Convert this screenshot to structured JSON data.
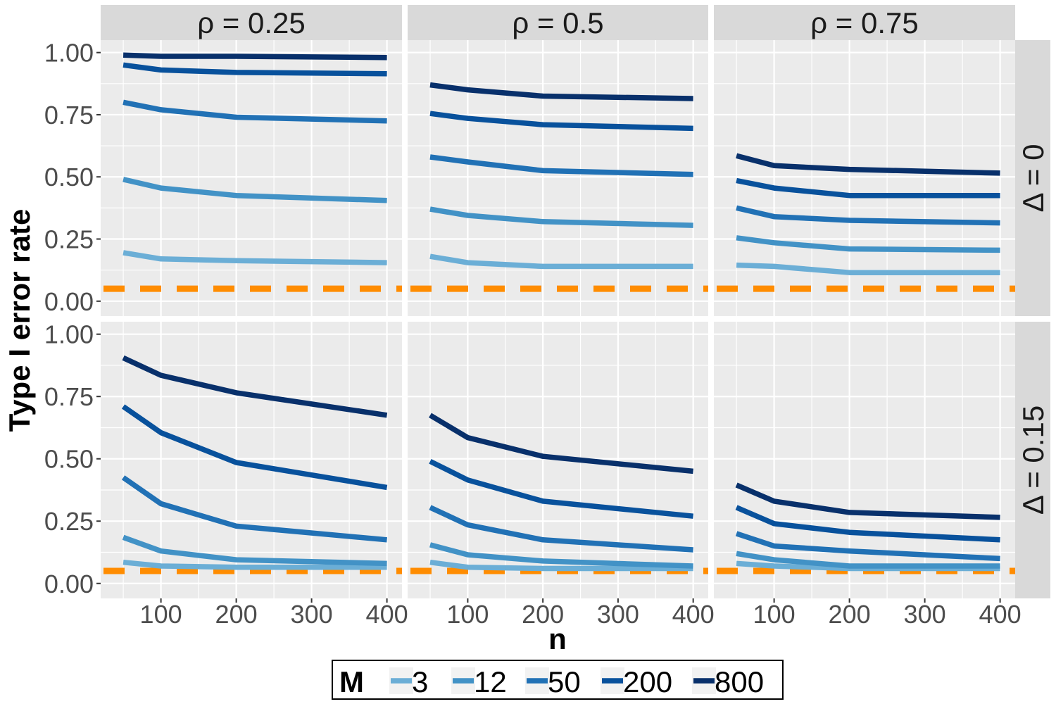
{
  "chart_data": {
    "type": "line",
    "xlabel": "n",
    "ylabel": "Type I error rate",
    "x": [
      50,
      100,
      200,
      400
    ],
    "xticks": [
      100,
      200,
      300,
      400
    ],
    "xlim": [
      20,
      420
    ],
    "yticks": [
      "0.00",
      "0.25",
      "0.50",
      "0.75",
      "1.00"
    ],
    "ylim": [
      -0.06,
      1.05
    ],
    "reference_line": {
      "y": 0.05,
      "color": "#ff8c00",
      "style": "dashed"
    },
    "columns": [
      "ρ = 0.25",
      "ρ = 0.5",
      "ρ = 0.75"
    ],
    "rows": [
      "Δ = 0",
      "Δ = 0.15"
    ],
    "legend": {
      "title": "M",
      "position": "bottom",
      "entries": [
        {
          "label": "3",
          "color": "#6baed6"
        },
        {
          "label": "12",
          "color": "#4292c6"
        },
        {
          "label": "50",
          "color": "#2171b5"
        },
        {
          "label": "200",
          "color": "#08519c"
        },
        {
          "label": "800",
          "color": "#08306b"
        }
      ]
    },
    "panels": [
      {
        "row": 0,
        "col": 0,
        "series": [
          {
            "M": "3",
            "values": [
              0.195,
              0.17,
              0.163,
              0.155
            ]
          },
          {
            "M": "12",
            "values": [
              0.49,
              0.455,
              0.425,
              0.405
            ]
          },
          {
            "M": "50",
            "values": [
              0.8,
              0.77,
              0.74,
              0.725
            ]
          },
          {
            "M": "200",
            "values": [
              0.95,
              0.93,
              0.92,
              0.915
            ]
          },
          {
            "M": "800",
            "values": [
              0.99,
              0.985,
              0.985,
              0.98
            ]
          }
        ]
      },
      {
        "row": 0,
        "col": 1,
        "series": [
          {
            "M": "3",
            "values": [
              0.18,
              0.155,
              0.14,
              0.14
            ]
          },
          {
            "M": "12",
            "values": [
              0.37,
              0.345,
              0.32,
              0.305
            ]
          },
          {
            "M": "50",
            "values": [
              0.58,
              0.56,
              0.525,
              0.51
            ]
          },
          {
            "M": "200",
            "values": [
              0.755,
              0.735,
              0.71,
              0.695
            ]
          },
          {
            "M": "800",
            "values": [
              0.87,
              0.85,
              0.825,
              0.815
            ]
          }
        ]
      },
      {
        "row": 0,
        "col": 2,
        "series": [
          {
            "M": "3",
            "values": [
              0.145,
              0.14,
              0.115,
              0.115
            ]
          },
          {
            "M": "12",
            "values": [
              0.255,
              0.235,
              0.21,
              0.205
            ]
          },
          {
            "M": "50",
            "values": [
              0.375,
              0.34,
              0.325,
              0.315
            ]
          },
          {
            "M": "200",
            "values": [
              0.485,
              0.455,
              0.425,
              0.425
            ]
          },
          {
            "M": "800",
            "values": [
              0.585,
              0.545,
              0.53,
              0.515
            ]
          }
        ]
      },
      {
        "row": 1,
        "col": 0,
        "series": [
          {
            "M": "3",
            "values": [
              0.085,
              0.07,
              0.065,
              0.065
            ]
          },
          {
            "M": "12",
            "values": [
              0.185,
              0.13,
              0.095,
              0.08
            ]
          },
          {
            "M": "50",
            "values": [
              0.425,
              0.32,
              0.23,
              0.175
            ]
          },
          {
            "M": "200",
            "values": [
              0.71,
              0.605,
              0.485,
              0.385
            ]
          },
          {
            "M": "800",
            "values": [
              0.905,
              0.835,
              0.765,
              0.675
            ]
          }
        ]
      },
      {
        "row": 1,
        "col": 1,
        "series": [
          {
            "M": "3",
            "values": [
              0.085,
              0.065,
              0.06,
              0.06
            ]
          },
          {
            "M": "12",
            "values": [
              0.155,
              0.115,
              0.09,
              0.07
            ]
          },
          {
            "M": "50",
            "values": [
              0.305,
              0.235,
              0.175,
              0.135
            ]
          },
          {
            "M": "200",
            "values": [
              0.49,
              0.415,
              0.33,
              0.27
            ]
          },
          {
            "M": "800",
            "values": [
              0.675,
              0.585,
              0.51,
              0.45
            ]
          }
        ]
      },
      {
        "row": 1,
        "col": 2,
        "series": [
          {
            "M": "3",
            "values": [
              0.08,
              0.07,
              0.06,
              0.06
            ]
          },
          {
            "M": "12",
            "values": [
              0.12,
              0.095,
              0.07,
              0.07
            ]
          },
          {
            "M": "50",
            "values": [
              0.2,
              0.15,
              0.13,
              0.1
            ]
          },
          {
            "M": "200",
            "values": [
              0.305,
              0.24,
              0.205,
              0.175
            ]
          },
          {
            "M": "800",
            "values": [
              0.395,
              0.33,
              0.285,
              0.265
            ]
          }
        ]
      }
    ]
  }
}
